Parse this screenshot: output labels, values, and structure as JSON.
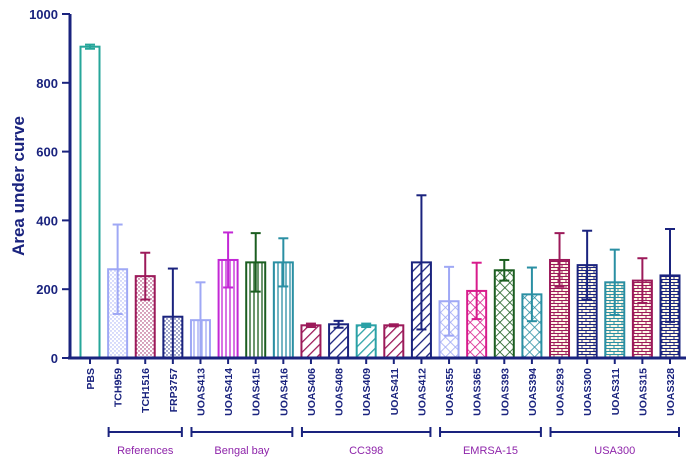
{
  "chart_data": {
    "type": "bar",
    "ylabel": "Area under curve",
    "xlabel": "",
    "ylim": [
      0,
      1000
    ],
    "yticks": [
      0,
      200,
      400,
      600,
      800,
      1000
    ],
    "grid": false,
    "bars": [
      {
        "label": "PBS",
        "value": 905,
        "err": 6,
        "color": "#26a69a",
        "pattern": "none"
      },
      {
        "label": "TCH959",
        "value": 258,
        "err": 130,
        "color": "#9fa8f5",
        "pattern": "dots"
      },
      {
        "label": "TCH1516",
        "value": 238,
        "err": 68,
        "color": "#9c1a5a",
        "pattern": "dots"
      },
      {
        "label": "FRP3757",
        "value": 120,
        "err": 140,
        "color": "#1a237e",
        "pattern": "dots"
      },
      {
        "label": "UOAS413",
        "value": 110,
        "err": 110,
        "color": "#9fa8f5",
        "pattern": "vlines"
      },
      {
        "label": "UOAS414",
        "value": 285,
        "err": 80,
        "color": "#c327d6",
        "pattern": "vlines"
      },
      {
        "label": "UOAS415",
        "value": 278,
        "err": 85,
        "color": "#1b5e20",
        "pattern": "vlines"
      },
      {
        "label": "UOAS416",
        "value": 278,
        "err": 70,
        "color": "#2a8fa3",
        "pattern": "vlines"
      },
      {
        "label": "UOAS406",
        "value": 95,
        "err": 5,
        "color": "#9c1a5a",
        "pattern": "diag"
      },
      {
        "label": "UOAS408",
        "value": 98,
        "err": 10,
        "color": "#1a237e",
        "pattern": "diag"
      },
      {
        "label": "UOAS409",
        "value": 95,
        "err": 5,
        "color": "#2aa1a6",
        "pattern": "diag"
      },
      {
        "label": "UOAS411",
        "value": 95,
        "err": 3,
        "color": "#9c1a5a",
        "pattern": "diag"
      },
      {
        "label": "UOAS412",
        "value": 278,
        "err": 195,
        "color": "#1a237e",
        "pattern": "diag"
      },
      {
        "label": "UOAS355",
        "value": 165,
        "err": 100,
        "color": "#9fa8f5",
        "pattern": "cross"
      },
      {
        "label": "UOAS365",
        "value": 195,
        "err": 82,
        "color": "#d81b8c",
        "pattern": "cross"
      },
      {
        "label": "UOAS393",
        "value": 255,
        "err": 30,
        "color": "#1b5e20",
        "pattern": "cross"
      },
      {
        "label": "UOAS394",
        "value": 185,
        "err": 78,
        "color": "#2a8fa3",
        "pattern": "cross"
      },
      {
        "label": "UOAS293",
        "value": 285,
        "err": 78,
        "color": "#9c1a5a",
        "pattern": "brick"
      },
      {
        "label": "UOAS300",
        "value": 270,
        "err": 100,
        "color": "#1a237e",
        "pattern": "brick"
      },
      {
        "label": "UOAS311",
        "value": 220,
        "err": 95,
        "color": "#2a8fa3",
        "pattern": "brick"
      },
      {
        "label": "UOAS315",
        "value": 225,
        "err": 65,
        "color": "#9c1a5a",
        "pattern": "brick"
      },
      {
        "label": "UOAS328",
        "value": 240,
        "err": 135,
        "color": "#1a237e",
        "pattern": "brick"
      }
    ],
    "groups": [
      {
        "label": "References",
        "start": 1,
        "end": 3
      },
      {
        "label": "Bengal bay",
        "start": 4,
        "end": 7
      },
      {
        "label": "CC398",
        "start": 8,
        "end": 12
      },
      {
        "label": "EMRSA-15",
        "start": 13,
        "end": 16
      },
      {
        "label": "USA300",
        "start": 17,
        "end": 21
      }
    ]
  },
  "colors": {
    "axis": "#1a237e",
    "group_label": "#8e24aa"
  }
}
